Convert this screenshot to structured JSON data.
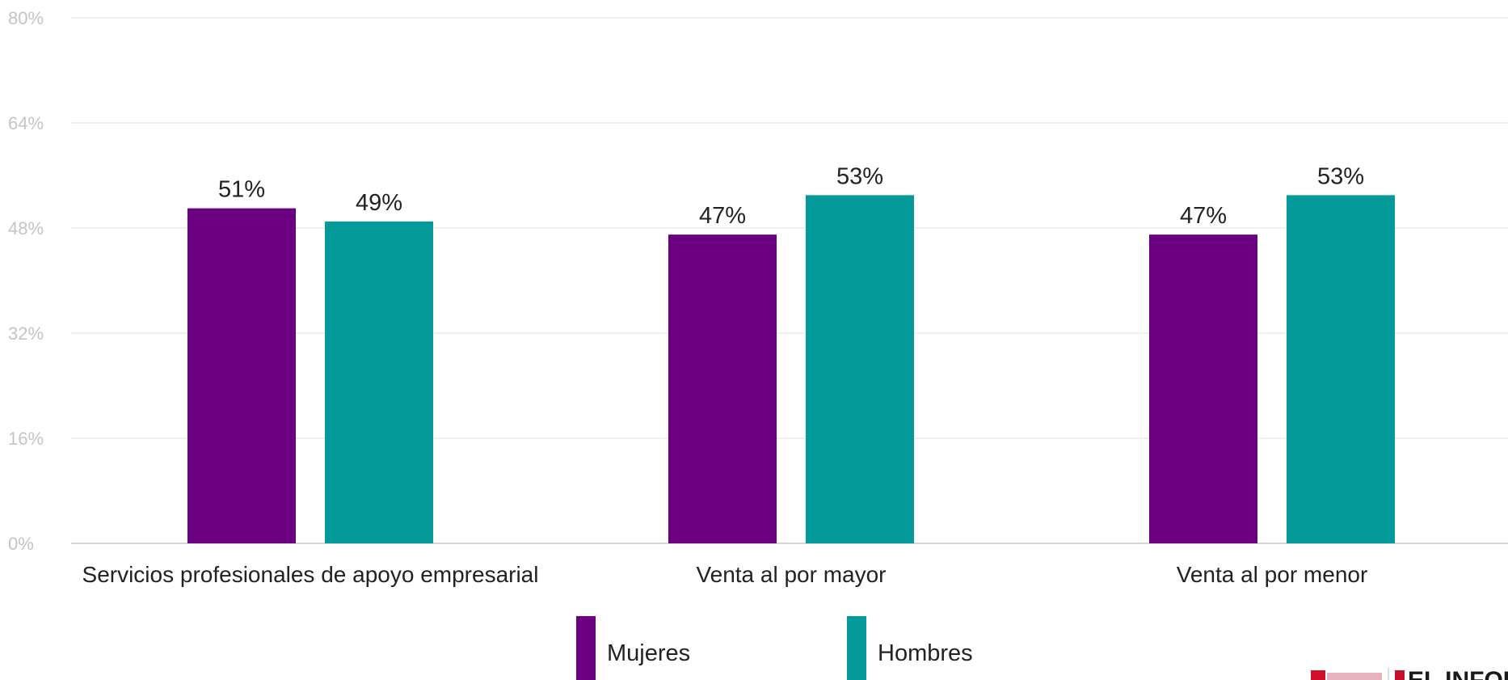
{
  "chart_data": {
    "type": "bar",
    "categories": [
      "Servicios profesionales de apoyo empresarial",
      "Venta al por mayor",
      "Venta al por menor"
    ],
    "series": [
      {
        "name": "Mujeres",
        "values": [
          51,
          47,
          47
        ],
        "labels": [
          "51%",
          "47%",
          "47%"
        ],
        "color": "#6a0080"
      },
      {
        "name": "Hombres",
        "values": [
          49,
          53,
          53
        ],
        "labels": [
          "49%",
          "53%",
          "53%"
        ],
        "color": "#049a99"
      }
    ],
    "ylim": [
      0,
      80
    ],
    "yticks": [
      0,
      16,
      32,
      48,
      64,
      80
    ],
    "ytick_labels": [
      "0%",
      "16%",
      "32%",
      "48%",
      "64%",
      "80%"
    ],
    "grid": true,
    "legend_position": "bottom"
  },
  "logo": {
    "text": "EL INFORM"
  },
  "colors": {
    "grid": "#ececec",
    "axis": "#d6d6d6",
    "tick_text": "#c4c4c4",
    "text": "#222222"
  }
}
